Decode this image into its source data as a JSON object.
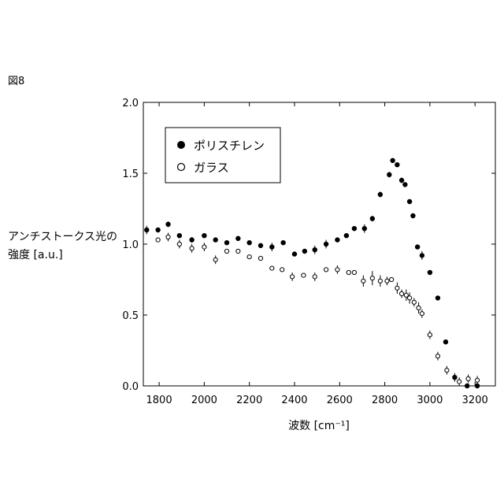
{
  "figure_label": "図8",
  "ylabel_line1": "アンチストークス光の",
  "ylabel_line2": "強度 [a.u.]",
  "xlabel": "波数 [cm⁻¹]",
  "colors": {
    "axis": "#000000",
    "filled_marker": "#000000",
    "open_marker_fill": "#ffffff"
  },
  "chart_data": {
    "type": "scatter",
    "title": "",
    "xlim": [
      1730,
      3290
    ],
    "ylim": [
      0.0,
      2.0
    ],
    "x_ticks": [
      1800,
      2000,
      2200,
      2400,
      2600,
      2800,
      3000,
      3200
    ],
    "y_ticks": [
      0.0,
      0.5,
      1.0,
      1.5,
      2.0
    ],
    "y_tick_labels": [
      "0.0",
      "0.5",
      "1.0",
      "1.5",
      "2.0"
    ],
    "grid": false,
    "legend_position": "top-left",
    "series": [
      {
        "name": "ポリスチレン",
        "marker": "filled-circle",
        "points": [
          {
            "x": 1745,
            "y": 1.1,
            "err": 0.03
          },
          {
            "x": 1795,
            "y": 1.1,
            "err": 0.0
          },
          {
            "x": 1840,
            "y": 1.14,
            "err": 0.02
          },
          {
            "x": 1890,
            "y": 1.06,
            "err": 0.0
          },
          {
            "x": 1945,
            "y": 1.03,
            "err": 0.02
          },
          {
            "x": 2000,
            "y": 1.06,
            "err": 0.0
          },
          {
            "x": 2050,
            "y": 1.03,
            "err": 0.0
          },
          {
            "x": 2100,
            "y": 1.01,
            "err": 0.0
          },
          {
            "x": 2150,
            "y": 1.04,
            "err": 0.0
          },
          {
            "x": 2200,
            "y": 1.01,
            "err": 0.0
          },
          {
            "x": 2250,
            "y": 0.99,
            "err": 0.0
          },
          {
            "x": 2300,
            "y": 0.98,
            "err": 0.03
          },
          {
            "x": 2350,
            "y": 1.01,
            "err": 0.0
          },
          {
            "x": 2400,
            "y": 0.93,
            "err": 0.0
          },
          {
            "x": 2445,
            "y": 0.95,
            "err": 0.0
          },
          {
            "x": 2490,
            "y": 0.96,
            "err": 0.03
          },
          {
            "x": 2540,
            "y": 1.0,
            "err": 0.03
          },
          {
            "x": 2590,
            "y": 1.03,
            "err": 0.0
          },
          {
            "x": 2630,
            "y": 1.06,
            "err": 0.0
          },
          {
            "x": 2665,
            "y": 1.11,
            "err": 0.0
          },
          {
            "x": 2710,
            "y": 1.11,
            "err": 0.03
          },
          {
            "x": 2745,
            "y": 1.18,
            "err": 0.02
          },
          {
            "x": 2780,
            "y": 1.35,
            "err": 0.02
          },
          {
            "x": 2820,
            "y": 1.49,
            "err": 0.02
          },
          {
            "x": 2835,
            "y": 1.59,
            "err": 0.0
          },
          {
            "x": 2855,
            "y": 1.56,
            "err": 0.0
          },
          {
            "x": 2875,
            "y": 1.45,
            "err": 0.02
          },
          {
            "x": 2890,
            "y": 1.42,
            "err": 0.0
          },
          {
            "x": 2910,
            "y": 1.3,
            "err": 0.0
          },
          {
            "x": 2925,
            "y": 1.2,
            "err": 0.0
          },
          {
            "x": 2945,
            "y": 0.98,
            "err": 0.0
          },
          {
            "x": 2965,
            "y": 0.92,
            "err": 0.03
          },
          {
            "x": 3000,
            "y": 0.8,
            "err": 0.0
          },
          {
            "x": 3035,
            "y": 0.62,
            "err": 0.0
          },
          {
            "x": 3070,
            "y": 0.31,
            "err": 0.0
          },
          {
            "x": 3110,
            "y": 0.06,
            "err": 0.03
          },
          {
            "x": 3165,
            "y": 0.0,
            "err": 0.0
          },
          {
            "x": 3210,
            "y": 0.0,
            "err": 0.0
          }
        ]
      },
      {
        "name": "ガラス",
        "marker": "open-circle",
        "points": [
          {
            "x": 1795,
            "y": 1.03,
            "err": 0.0
          },
          {
            "x": 1840,
            "y": 1.05,
            "err": 0.03
          },
          {
            "x": 1890,
            "y": 1.0,
            "err": 0.03
          },
          {
            "x": 1945,
            "y": 0.97,
            "err": 0.03
          },
          {
            "x": 2000,
            "y": 0.98,
            "err": 0.03
          },
          {
            "x": 2050,
            "y": 0.89,
            "err": 0.03
          },
          {
            "x": 2100,
            "y": 0.95,
            "err": 0.0
          },
          {
            "x": 2150,
            "y": 0.95,
            "err": 0.0
          },
          {
            "x": 2200,
            "y": 0.91,
            "err": 0.0
          },
          {
            "x": 2250,
            "y": 0.9,
            "err": 0.0
          },
          {
            "x": 2300,
            "y": 0.83,
            "err": 0.0
          },
          {
            "x": 2345,
            "y": 0.82,
            "err": 0.0
          },
          {
            "x": 2390,
            "y": 0.77,
            "err": 0.03
          },
          {
            "x": 2440,
            "y": 0.78,
            "err": 0.0
          },
          {
            "x": 2490,
            "y": 0.77,
            "err": 0.03
          },
          {
            "x": 2540,
            "y": 0.82,
            "err": 0.0
          },
          {
            "x": 2590,
            "y": 0.82,
            "err": 0.03
          },
          {
            "x": 2640,
            "y": 0.8,
            "err": 0.0
          },
          {
            "x": 2665,
            "y": 0.8,
            "err": 0.0
          },
          {
            "x": 2705,
            "y": 0.74,
            "err": 0.04
          },
          {
            "x": 2745,
            "y": 0.76,
            "err": 0.05
          },
          {
            "x": 2780,
            "y": 0.74,
            "err": 0.04
          },
          {
            "x": 2810,
            "y": 0.74,
            "err": 0.03
          },
          {
            "x": 2830,
            "y": 0.75,
            "err": 0.0
          },
          {
            "x": 2855,
            "y": 0.69,
            "err": 0.04
          },
          {
            "x": 2875,
            "y": 0.65,
            "err": 0.03
          },
          {
            "x": 2895,
            "y": 0.64,
            "err": 0.04
          },
          {
            "x": 2910,
            "y": 0.62,
            "err": 0.04
          },
          {
            "x": 2930,
            "y": 0.59,
            "err": 0.03
          },
          {
            "x": 2950,
            "y": 0.55,
            "err": 0.04
          },
          {
            "x": 2965,
            "y": 0.51,
            "err": 0.03
          },
          {
            "x": 3000,
            "y": 0.36,
            "err": 0.03
          },
          {
            "x": 3035,
            "y": 0.21,
            "err": 0.03
          },
          {
            "x": 3075,
            "y": 0.11,
            "err": 0.03
          },
          {
            "x": 3130,
            "y": 0.03,
            "err": 0.03
          },
          {
            "x": 3170,
            "y": 0.05,
            "err": 0.03
          },
          {
            "x": 3210,
            "y": 0.04,
            "err": 0.03
          }
        ]
      }
    ]
  }
}
